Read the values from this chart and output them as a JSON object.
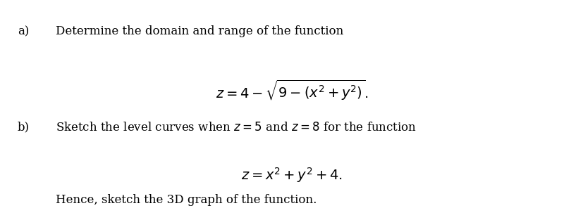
{
  "background_color": "#ffffff",
  "label_a": "a)",
  "label_b": "b)",
  "text_a1": "Determine the domain and range of the function",
  "formula_a": "$z = 4 - \\sqrt{9 - (x^2 + y^2)}.$",
  "text_b1": "Sketch the level curves when $z = 5$ and $z = 8$ for the function",
  "formula_b": "$z = x^2 + y^2 + 4.$",
  "text_b2": "Hence, sketch the 3D graph of the function.",
  "font_size_label": 12,
  "font_size_text": 12,
  "font_size_formula": 14,
  "text_color": "#000000",
  "fig_width": 8.28,
  "fig_height": 3.03,
  "dpi": 100
}
